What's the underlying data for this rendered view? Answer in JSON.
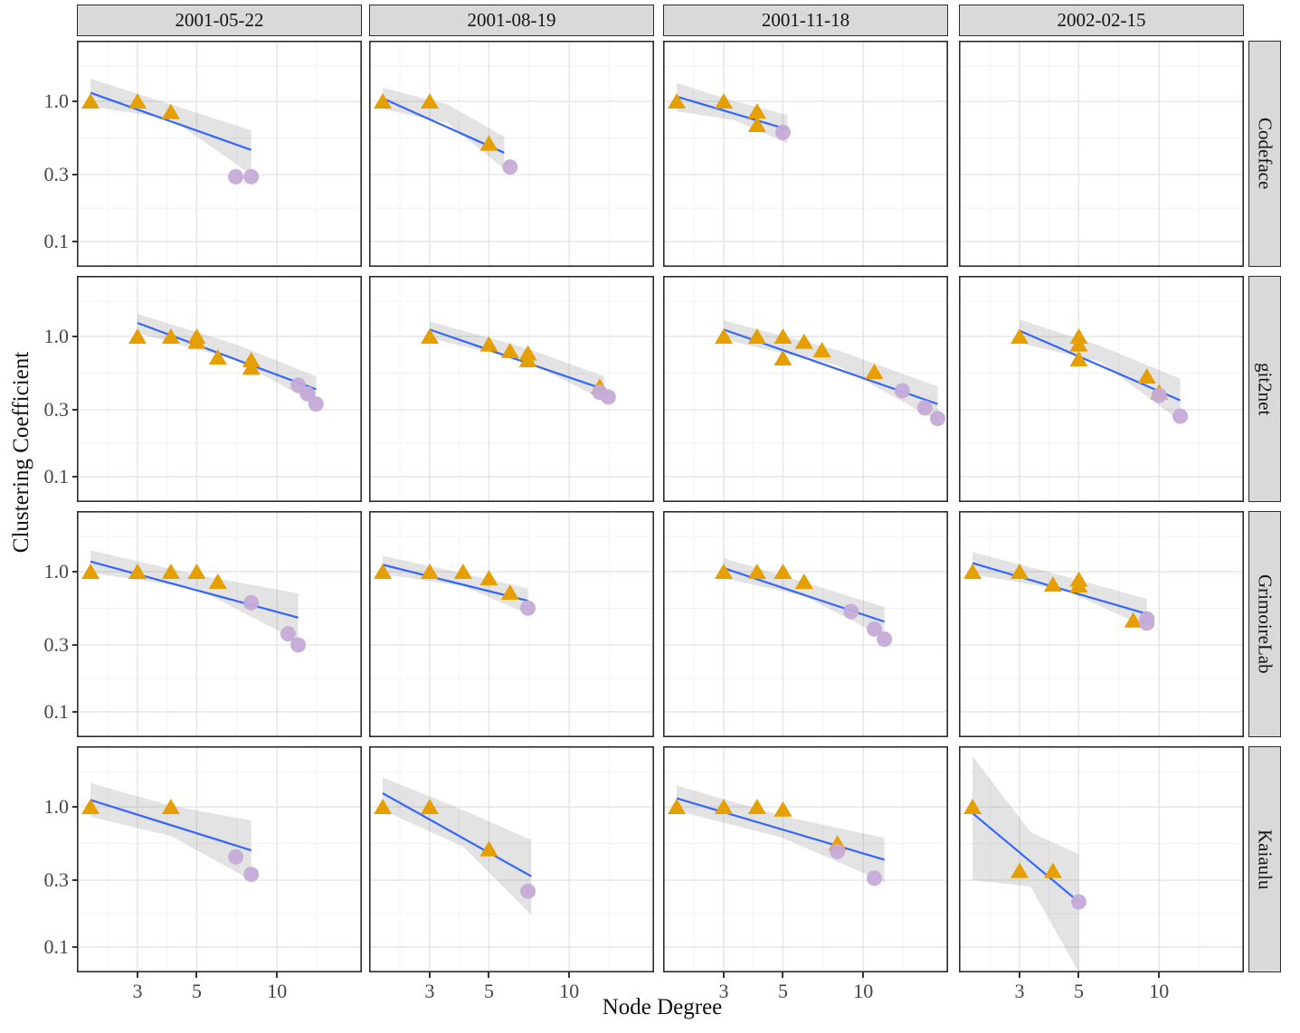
{
  "axes": {
    "x_label": "Node Degree",
    "y_label": "Clustering Coefficient",
    "x_tick_labels": [
      "3",
      "5",
      "10"
    ],
    "y_tick_labels": [
      "1.0",
      "0.3",
      "0.1"
    ]
  },
  "facets": {
    "columns": [
      "2001-05-22",
      "2001-08-19",
      "2001-11-18",
      "2002-02-15"
    ],
    "rows": [
      "Codeface",
      "git2net",
      "GrimoireLab",
      "Kaiaulu"
    ]
  },
  "colors": {
    "triangle": "#E69F00",
    "circle": "#C5ABD8",
    "trend": "#3366FF",
    "band": "rgba(128,128,128,0.22)",
    "strip_bg": "#d9d9d9",
    "panel_border": "#2b2b2b",
    "grid_major": "#e5e5e5",
    "grid_minor": "#f3f3f3"
  },
  "chart_data": {
    "type": "scatter",
    "title": "",
    "xlabel": "Node Degree",
    "ylabel": "Clustering Coefficient",
    "x_scale": "log10",
    "y_scale": "log10",
    "x_breaks": [
      3,
      5,
      10
    ],
    "y_breaks": [
      1.0,
      0.3,
      0.1
    ],
    "x_minor_breaks": [
      2.32,
      3.87,
      7.07,
      14.1
    ],
    "y_minor_breaks": [
      1.78,
      0.548,
      0.173
    ],
    "x_domain": [
      1.78,
      20.9
    ],
    "y_domain": [
      0.068,
      2.71
    ],
    "grid": true,
    "legend": "none",
    "facet_columns": [
      "2001-05-22",
      "2001-08-19",
      "2001-11-18",
      "2002-02-15"
    ],
    "facet_rows": [
      "Codeface",
      "git2net",
      "GrimoireLab",
      "Kaiaulu"
    ],
    "marker_series": [
      {
        "name": "triangle",
        "shape": "triangle",
        "color": "#E69F00"
      },
      {
        "name": "circle",
        "shape": "circle",
        "color": "#C5ABD8"
      }
    ],
    "panels": [
      {
        "row": "Codeface",
        "col": "2001-05-22",
        "triangles": [
          [
            2,
            1.0
          ],
          [
            3,
            1.0
          ],
          [
            4,
            0.84
          ]
        ],
        "circles": [
          [
            7,
            0.29
          ],
          [
            8,
            0.29
          ]
        ],
        "trend": {
          "x": [
            2,
            8
          ],
          "y": [
            1.15,
            0.45
          ]
        },
        "band": {
          "x": [
            2,
            4,
            8
          ],
          "upper": [
            1.45,
            0.95,
            0.62
          ],
          "lower": [
            0.92,
            0.75,
            0.3
          ]
        }
      },
      {
        "row": "Codeface",
        "col": "2001-08-19",
        "triangles": [
          [
            2,
            1.0
          ],
          [
            3,
            1.0
          ],
          [
            5,
            0.5
          ]
        ],
        "circles": [
          [
            6,
            0.34
          ]
        ],
        "trend": {
          "x": [
            2,
            5.7
          ],
          "y": [
            1.05,
            0.43
          ]
        },
        "band": {
          "x": [
            2,
            3.5,
            5.7
          ],
          "upper": [
            1.25,
            0.95,
            0.56
          ],
          "lower": [
            0.88,
            0.7,
            0.33
          ]
        }
      },
      {
        "row": "Codeface",
        "col": "2001-11-18",
        "triangles": [
          [
            2,
            1.0
          ],
          [
            3,
            1.0
          ],
          [
            4,
            0.85
          ],
          [
            4,
            0.68
          ]
        ],
        "circles": [
          [
            5,
            0.6
          ]
        ],
        "trend": {
          "x": [
            2,
            5.2
          ],
          "y": [
            1.08,
            0.63
          ]
        },
        "band": {
          "x": [
            2,
            3.3,
            5.2
          ],
          "upper": [
            1.35,
            1.0,
            0.8
          ],
          "lower": [
            0.85,
            0.73,
            0.5
          ]
        }
      },
      {
        "row": "Codeface",
        "col": "2002-02-15",
        "triangles": [],
        "circles": [],
        "trend": null,
        "band": null
      },
      {
        "row": "git2net",
        "col": "2001-05-22",
        "triangles": [
          [
            3,
            1.0
          ],
          [
            4,
            1.0
          ],
          [
            5,
            1.0
          ],
          [
            5,
            0.92
          ],
          [
            6,
            0.71
          ],
          [
            8,
            0.68
          ],
          [
            8,
            0.6
          ]
        ],
        "circles": [
          [
            12,
            0.45
          ],
          [
            13,
            0.39
          ],
          [
            14,
            0.33
          ]
        ],
        "trend": {
          "x": [
            3,
            14
          ],
          "y": [
            1.25,
            0.42
          ]
        },
        "band": {
          "x": [
            3,
            7,
            14
          ],
          "upper": [
            1.45,
            0.88,
            0.52
          ],
          "lower": [
            1.06,
            0.68,
            0.33
          ]
        }
      },
      {
        "row": "git2net",
        "col": "2001-08-19",
        "triangles": [
          [
            3,
            1.0
          ],
          [
            5,
            0.88
          ],
          [
            6,
            0.79
          ],
          [
            7,
            0.76
          ],
          [
            7,
            0.68
          ],
          [
            13,
            0.44
          ]
        ],
        "circles": [
          [
            13,
            0.4
          ],
          [
            14,
            0.37
          ]
        ],
        "trend": {
          "x": [
            3,
            13.5
          ],
          "y": [
            1.12,
            0.42
          ]
        },
        "band": {
          "x": [
            3,
            7,
            13.5
          ],
          "upper": [
            1.28,
            0.82,
            0.52
          ],
          "lower": [
            0.97,
            0.66,
            0.35
          ]
        }
      },
      {
        "row": "git2net",
        "col": "2001-11-18",
        "triangles": [
          [
            3,
            1.0
          ],
          [
            4,
            1.0
          ],
          [
            5,
            1.0
          ],
          [
            5,
            0.7
          ],
          [
            6,
            0.92
          ],
          [
            7,
            0.8
          ],
          [
            11,
            0.56
          ]
        ],
        "circles": [
          [
            14,
            0.41
          ],
          [
            17,
            0.31
          ],
          [
            19,
            0.26
          ]
        ],
        "trend": {
          "x": [
            3,
            19
          ],
          "y": [
            1.12,
            0.33
          ]
        },
        "band": {
          "x": [
            3,
            8,
            19
          ],
          "upper": [
            1.3,
            0.8,
            0.44
          ],
          "lower": [
            0.95,
            0.62,
            0.25
          ]
        }
      },
      {
        "row": "git2net",
        "col": "2002-02-15",
        "triangles": [
          [
            3,
            1.0
          ],
          [
            5,
            1.0
          ],
          [
            5,
            0.88
          ],
          [
            5,
            0.69
          ],
          [
            9,
            0.52
          ],
          [
            10,
            0.4
          ]
        ],
        "circles": [
          [
            10,
            0.38
          ],
          [
            12,
            0.27
          ]
        ],
        "trend": {
          "x": [
            3,
            12
          ],
          "y": [
            1.1,
            0.35
          ]
        },
        "band": {
          "x": [
            3,
            6,
            12
          ],
          "upper": [
            1.32,
            0.86,
            0.5
          ],
          "lower": [
            0.9,
            0.66,
            0.25
          ]
        }
      },
      {
        "row": "GrimoireLab",
        "col": "2001-05-22",
        "triangles": [
          [
            2,
            1.0
          ],
          [
            3,
            1.0
          ],
          [
            4,
            1.0
          ],
          [
            5,
            1.0
          ],
          [
            6,
            0.85
          ]
        ],
        "circles": [
          [
            8,
            0.6
          ],
          [
            11,
            0.36
          ],
          [
            12,
            0.3
          ]
        ],
        "trend": {
          "x": [
            2,
            12
          ],
          "y": [
            1.18,
            0.47
          ]
        },
        "band": {
          "x": [
            2,
            5,
            12
          ],
          "upper": [
            1.42,
            0.95,
            0.7
          ],
          "lower": [
            0.98,
            0.76,
            0.32
          ]
        }
      },
      {
        "row": "GrimoireLab",
        "col": "2001-08-19",
        "triangles": [
          [
            2,
            1.0
          ],
          [
            3,
            1.0
          ],
          [
            4,
            1.0
          ],
          [
            5,
            0.9
          ],
          [
            6,
            0.71
          ]
        ],
        "circles": [
          [
            7,
            0.55
          ]
        ],
        "trend": {
          "x": [
            2,
            7
          ],
          "y": [
            1.12,
            0.62
          ]
        },
        "band": {
          "x": [
            2,
            4,
            7
          ],
          "upper": [
            1.3,
            0.97,
            0.76
          ],
          "lower": [
            0.96,
            0.79,
            0.5
          ]
        }
      },
      {
        "row": "GrimoireLab",
        "col": "2001-11-18",
        "triangles": [
          [
            3,
            1.0
          ],
          [
            4,
            1.0
          ],
          [
            5,
            1.0
          ],
          [
            6,
            0.85
          ]
        ],
        "circles": [
          [
            9,
            0.52
          ],
          [
            11,
            0.39
          ],
          [
            12,
            0.33
          ]
        ],
        "trend": {
          "x": [
            3,
            12
          ],
          "y": [
            1.06,
            0.44
          ]
        },
        "band": {
          "x": [
            3,
            6,
            12
          ],
          "upper": [
            1.25,
            0.84,
            0.56
          ],
          "lower": [
            0.9,
            0.67,
            0.34
          ]
        }
      },
      {
        "row": "GrimoireLab",
        "col": "2002-02-15",
        "triangles": [
          [
            2,
            1.0
          ],
          [
            3,
            1.0
          ],
          [
            4,
            0.81
          ],
          [
            5,
            0.88
          ],
          [
            5,
            0.8
          ],
          [
            8,
            0.45
          ]
        ],
        "circles": [
          [
            9,
            0.46
          ],
          [
            9,
            0.43
          ]
        ],
        "trend": {
          "x": [
            2,
            9
          ],
          "y": [
            1.15,
            0.5
          ]
        },
        "band": {
          "x": [
            2,
            4.5,
            9
          ],
          "upper": [
            1.38,
            0.92,
            0.64
          ],
          "lower": [
            0.96,
            0.73,
            0.4
          ]
        }
      },
      {
        "row": "Kaiaulu",
        "col": "2001-05-22",
        "triangles": [
          [
            2,
            1.0
          ],
          [
            4,
            1.0
          ]
        ],
        "circles": [
          [
            7,
            0.44
          ],
          [
            8,
            0.33
          ]
        ],
        "trend": {
          "x": [
            2,
            8
          ],
          "y": [
            1.12,
            0.49
          ]
        },
        "band": {
          "x": [
            2,
            4,
            8
          ],
          "upper": [
            1.48,
            1.02,
            0.8
          ],
          "lower": [
            0.85,
            0.62,
            0.3
          ]
        }
      },
      {
        "row": "Kaiaulu",
        "col": "2001-08-19",
        "triangles": [
          [
            2,
            1.0
          ],
          [
            3,
            1.0
          ],
          [
            5,
            0.5
          ]
        ],
        "circles": [
          [
            7,
            0.25
          ]
        ],
        "trend": {
          "x": [
            2,
            7.2
          ],
          "y": [
            1.25,
            0.32
          ]
        },
        "band": {
          "x": [
            2,
            4,
            7.2
          ],
          "upper": [
            1.62,
            0.95,
            0.58
          ],
          "lower": [
            0.95,
            0.52,
            0.17
          ]
        }
      },
      {
        "row": "Kaiaulu",
        "col": "2001-11-18",
        "triangles": [
          [
            2,
            1.0
          ],
          [
            3,
            1.0
          ],
          [
            4,
            1.0
          ],
          [
            5,
            0.96
          ],
          [
            8,
            0.55
          ]
        ],
        "circles": [
          [
            8,
            0.48
          ],
          [
            11,
            0.31
          ]
        ],
        "trend": {
          "x": [
            2,
            12
          ],
          "y": [
            1.15,
            0.42
          ]
        },
        "band": {
          "x": [
            2,
            5,
            12
          ],
          "upper": [
            1.42,
            0.86,
            0.6
          ],
          "lower": [
            0.94,
            0.6,
            0.29
          ]
        }
      },
      {
        "row": "Kaiaulu",
        "col": "2002-02-15",
        "triangles": [
          [
            2,
            1.0
          ],
          [
            3,
            0.35
          ],
          [
            4,
            0.35
          ]
        ],
        "circles": [
          [
            5,
            0.21
          ]
        ],
        "trend": {
          "x": [
            2,
            5
          ],
          "y": [
            0.9,
            0.21
          ]
        },
        "band": {
          "x": [
            2,
            3.3,
            5
          ],
          "upper": [
            2.3,
            0.66,
            0.46
          ],
          "lower": [
            0.3,
            0.27,
            0.066
          ]
        }
      }
    ]
  }
}
